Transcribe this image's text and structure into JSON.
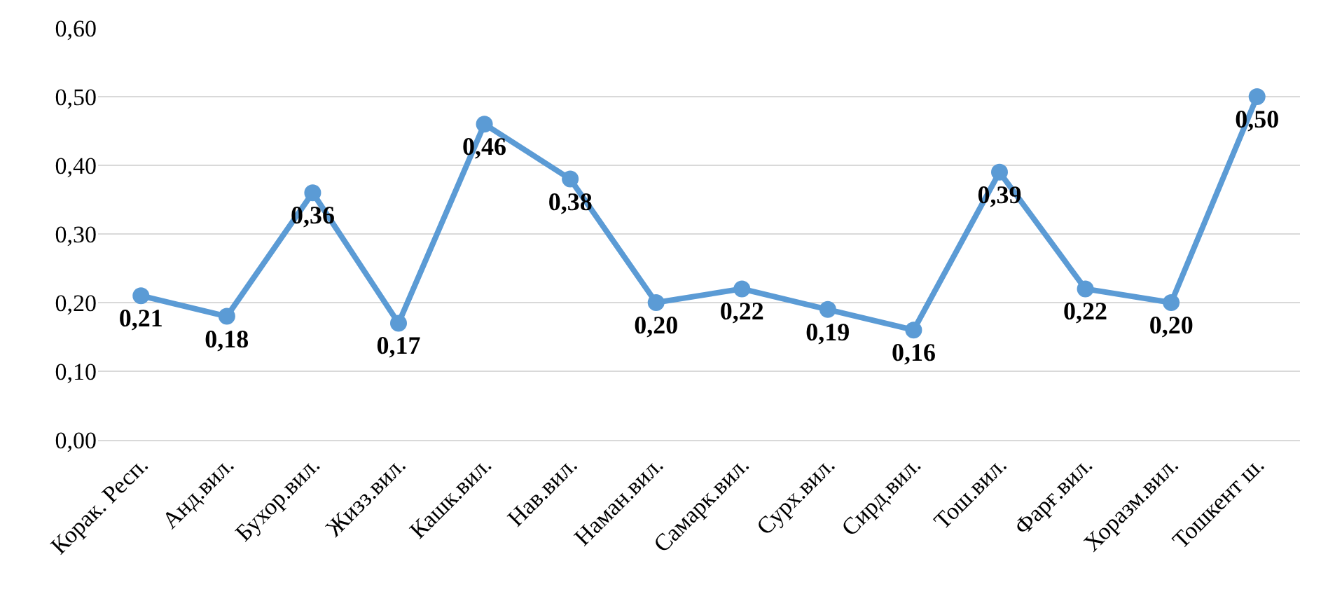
{
  "chart_data": {
    "type": "line",
    "categories": [
      "Корак. Респ.",
      "Анд.вил.",
      "Бухор.вил.",
      "Жизз.вил.",
      "Кашк.вил.",
      "Нав.вил.",
      "Наман.вил.",
      "Самарк.вил.",
      "Сурх.вил.",
      "Сирд.вил.",
      "Тош.вил.",
      "Фарғ.вил.",
      "Хоразм.вил.",
      "Тошкент ш."
    ],
    "series": [
      {
        "color": "#5b9bd5",
        "values": [
          0.21,
          0.18,
          0.36,
          0.17,
          0.46,
          0.38,
          0.2,
          0.22,
          0.19,
          0.16,
          0.39,
          0.22,
          0.2,
          0.5
        ],
        "value_labels": [
          "0,21",
          "0,18",
          "0,36",
          "0,17",
          "0,46",
          "0,38",
          "0,20",
          "0,22",
          "0,19",
          "0,16",
          "0,39",
          "0,22",
          "0,20",
          "0,50"
        ]
      }
    ],
    "ylim": [
      0,
      0.6
    ],
    "yticks": [
      {
        "value": 0,
        "label": "0,00"
      },
      {
        "value": 0.1,
        "label": "0,10"
      },
      {
        "value": 0.2,
        "label": "0,20"
      },
      {
        "value": 0.3,
        "label": "0,30"
      },
      {
        "value": 0.4,
        "label": "0,40"
      },
      {
        "value": 0.5,
        "label": "0,50"
      },
      {
        "value": 0.6,
        "label": "0,60"
      }
    ],
    "grid": "y",
    "marker": "circle",
    "line_style": "solid",
    "legend": false
  }
}
